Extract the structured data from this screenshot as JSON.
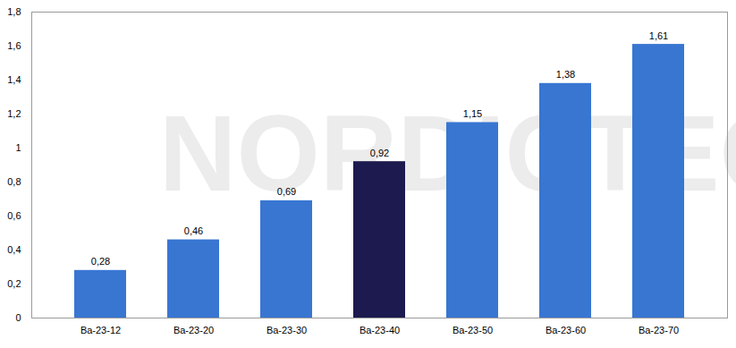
{
  "chart_data": {
    "type": "bar",
    "categories": [
      "Ba-23-12",
      "Ba-23-20",
      "Ba-23-30",
      "Ba-23-40",
      "Ba-23-50",
      "Ba-23-60",
      "Ba-23-70"
    ],
    "values": [
      0.28,
      0.46,
      0.69,
      0.92,
      1.15,
      1.38,
      1.61
    ],
    "value_labels": [
      "0,28",
      "0,46",
      "0,69",
      "0,92",
      "1,15",
      "1,38",
      "1,61"
    ],
    "colors": [
      "#3876d2",
      "#3876d2",
      "#3876d2",
      "#1c1a4e",
      "#3876d2",
      "#3876d2",
      "#3876d2"
    ],
    "ylim": [
      0,
      1.8
    ],
    "yticks": [
      0,
      {
        "value": 0.2,
        "label": "0,2"
      },
      {
        "value": 0.4,
        "label": "0,4"
      },
      {
        "value": 0.6,
        "label": "0,6"
      },
      {
        "value": 0.8,
        "label": "0,8"
      },
      1,
      {
        "value": 1.2,
        "label": "1,2"
      },
      {
        "value": 1.4,
        "label": "1,4"
      },
      {
        "value": 1.6,
        "label": "1,6"
      },
      {
        "value": 1.8,
        "label": "1,8"
      }
    ],
    "annotations": [
      "NORDICTEC"
    ],
    "data_labels": true,
    "grid": false
  }
}
